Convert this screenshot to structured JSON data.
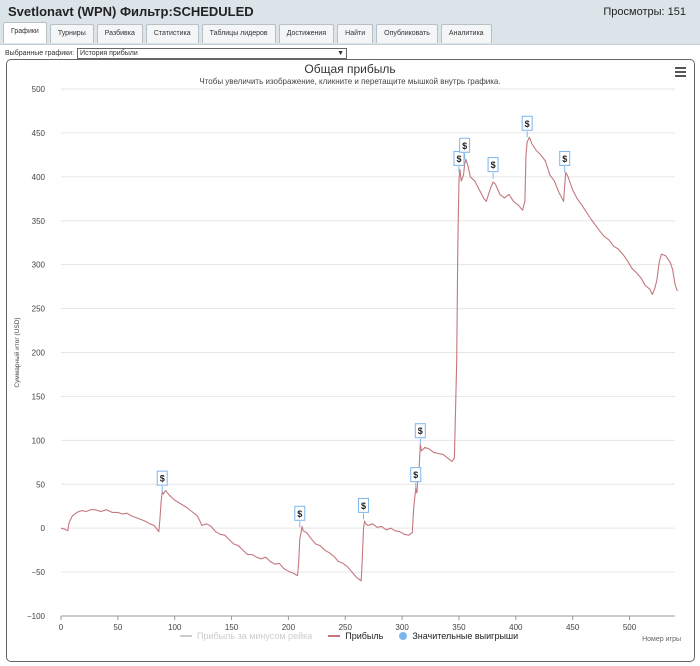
{
  "header": {
    "title": "Svetlonavt (WPN) Фильтр:SCHEDULED",
    "views_label": "Просмотры: 151"
  },
  "tabs": [
    {
      "label": "Графики",
      "active": true
    },
    {
      "label": "Турниры"
    },
    {
      "label": "Разбивка"
    },
    {
      "label": "Статистика"
    },
    {
      "label": "Таблицы лидеров"
    },
    {
      "label": "Достижения"
    },
    {
      "label": "Найти"
    },
    {
      "label": "Опубликовать"
    },
    {
      "label": "Аналитика"
    }
  ],
  "selector": {
    "label": "Выбранные графики:",
    "value": "История прибыли"
  },
  "colors": {
    "profit_line": "#c4777e",
    "rake_line": "#cccccc",
    "big_win_marker": "#7cb5ec",
    "header_bg": "#dbe4e9",
    "grid": "#e6e6e6"
  },
  "chart_data": {
    "type": "line",
    "title": "Общая прибыль",
    "subtitle": "Чтобы увеличить изображение, кликните и перетащите мышкой внутрь графика.",
    "xlabel": "Номер игры",
    "ylabel": "Суммарный итог (USD)",
    "xlim": [
      0,
      540
    ],
    "ylim": [
      -100,
      500
    ],
    "x_ticks": [
      "0",
      "50",
      "100",
      "150",
      "200",
      "250",
      "300",
      "350",
      "400",
      "450",
      "500"
    ],
    "y_ticks": [
      "500",
      "450",
      "400",
      "350",
      "300",
      "250",
      "200",
      "150",
      "100",
      "50",
      "0",
      "−50",
      "−100"
    ],
    "legend_position": "bottom",
    "legend": [
      {
        "label": "Прибыль за минусом рейка",
        "hidden": true
      },
      {
        "label": "Прибыль"
      },
      {
        "label": "Значительные выигрыши"
      }
    ],
    "series": [
      {
        "name": "Прибыль",
        "points": [
          [
            0,
            0
          ],
          [
            3,
            -1
          ],
          [
            6,
            -3
          ],
          [
            7,
            6
          ],
          [
            10,
            14
          ],
          [
            14,
            18
          ],
          [
            18,
            20
          ],
          [
            22,
            19
          ],
          [
            26,
            21
          ],
          [
            30,
            21
          ],
          [
            35,
            19
          ],
          [
            40,
            21
          ],
          [
            45,
            18
          ],
          [
            50,
            18
          ],
          [
            54,
            16
          ],
          [
            58,
            17
          ],
          [
            62,
            14
          ],
          [
            66,
            12
          ],
          [
            70,
            10
          ],
          [
            74,
            8
          ],
          [
            78,
            5
          ],
          [
            82,
            3
          ],
          [
            86,
            -4
          ],
          [
            87,
            10
          ],
          [
            88,
            30
          ],
          [
            89,
            41
          ],
          [
            90,
            39
          ],
          [
            92,
            43
          ],
          [
            95,
            38
          ],
          [
            100,
            32
          ],
          [
            105,
            28
          ],
          [
            110,
            24
          ],
          [
            115,
            19
          ],
          [
            120,
            14
          ],
          [
            124,
            3
          ],
          [
            128,
            5
          ],
          [
            132,
            2
          ],
          [
            136,
            -4
          ],
          [
            140,
            -7
          ],
          [
            144,
            -8
          ],
          [
            148,
            -13
          ],
          [
            152,
            -18
          ],
          [
            156,
            -20
          ],
          [
            160,
            -25
          ],
          [
            164,
            -30
          ],
          [
            168,
            -30
          ],
          [
            172,
            -33
          ],
          [
            176,
            -35
          ],
          [
            180,
            -33
          ],
          [
            184,
            -38
          ],
          [
            188,
            -41
          ],
          [
            192,
            -40
          ],
          [
            196,
            -46
          ],
          [
            200,
            -49
          ],
          [
            204,
            -51
          ],
          [
            208,
            -54
          ],
          [
            209,
            -41
          ],
          [
            210,
            -12
          ],
          [
            211,
            -6
          ],
          [
            212,
            2
          ],
          [
            213,
            -3
          ],
          [
            216,
            -5
          ],
          [
            220,
            -12
          ],
          [
            224,
            -18
          ],
          [
            228,
            -20
          ],
          [
            232,
            -25
          ],
          [
            236,
            -28
          ],
          [
            240,
            -32
          ],
          [
            244,
            -38
          ],
          [
            248,
            -40
          ],
          [
            252,
            -44
          ],
          [
            256,
            -50
          ],
          [
            260,
            -56
          ],
          [
            264,
            -60
          ],
          [
            265,
            -35
          ],
          [
            266,
            0
          ],
          [
            267,
            8
          ],
          [
            268,
            5
          ],
          [
            270,
            3
          ],
          [
            274,
            5
          ],
          [
            278,
            1
          ],
          [
            282,
            2
          ],
          [
            286,
            -2
          ],
          [
            290,
            0
          ],
          [
            294,
            -3
          ],
          [
            298,
            -4
          ],
          [
            302,
            -7
          ],
          [
            306,
            -8
          ],
          [
            309,
            -5
          ],
          [
            310,
            20
          ],
          [
            311,
            33
          ],
          [
            312,
            45
          ],
          [
            313,
            40
          ],
          [
            314,
            60
          ],
          [
            315,
            70
          ],
          [
            316,
            95
          ],
          [
            317,
            88
          ],
          [
            320,
            92
          ],
          [
            324,
            90
          ],
          [
            328,
            86
          ],
          [
            332,
            85
          ],
          [
            336,
            84
          ],
          [
            340,
            80
          ],
          [
            344,
            76
          ],
          [
            346,
            80
          ],
          [
            348,
            190
          ],
          [
            349,
            320
          ],
          [
            350,
            398
          ],
          [
            351,
            408
          ],
          [
            352,
            395
          ],
          [
            354,
            402
          ],
          [
            355,
            414
          ],
          [
            356,
            420
          ],
          [
            358,
            412
          ],
          [
            360,
            400
          ],
          [
            364,
            395
          ],
          [
            368,
            385
          ],
          [
            372,
            375
          ],
          [
            374,
            372
          ],
          [
            376,
            380
          ],
          [
            378,
            388
          ],
          [
            380,
            394
          ],
          [
            382,
            392
          ],
          [
            386,
            380
          ],
          [
            390,
            376
          ],
          [
            394,
            380
          ],
          [
            398,
            372
          ],
          [
            402,
            368
          ],
          [
            406,
            362
          ],
          [
            408,
            372
          ],
          [
            409,
            425
          ],
          [
            410,
            440
          ],
          [
            412,
            445
          ],
          [
            414,
            438
          ],
          [
            418,
            430
          ],
          [
            422,
            425
          ],
          [
            426,
            418
          ],
          [
            430,
            402
          ],
          [
            434,
            395
          ],
          [
            438,
            382
          ],
          [
            442,
            372
          ],
          [
            443,
            390
          ],
          [
            444,
            405
          ],
          [
            446,
            400
          ],
          [
            450,
            385
          ],
          [
            454,
            375
          ],
          [
            458,
            368
          ],
          [
            462,
            360
          ],
          [
            466,
            352
          ],
          [
            470,
            345
          ],
          [
            474,
            338
          ],
          [
            478,
            332
          ],
          [
            482,
            328
          ],
          [
            486,
            321
          ],
          [
            490,
            318
          ],
          [
            494,
            312
          ],
          [
            498,
            305
          ],
          [
            502,
            296
          ],
          [
            506,
            291
          ],
          [
            510,
            285
          ],
          [
            514,
            276
          ],
          [
            518,
            272
          ],
          [
            520,
            266
          ],
          [
            522,
            272
          ],
          [
            524,
            282
          ],
          [
            526,
            302
          ],
          [
            528,
            312
          ],
          [
            532,
            310
          ],
          [
            536,
            302
          ],
          [
            538,
            294
          ],
          [
            540,
            278
          ],
          [
            542,
            270
          ]
        ]
      }
    ],
    "markers": [
      {
        "label": "$",
        "x": 89,
        "y": 41
      },
      {
        "label": "$",
        "x": 210,
        "y": 1
      },
      {
        "label": "$",
        "x": 266,
        "y": 10
      },
      {
        "label": "$",
        "x": 312,
        "y": 45
      },
      {
        "label": "$",
        "x": 316,
        "y": 95
      },
      {
        "label": "$",
        "x": 350,
        "y": 405
      },
      {
        "label": "$",
        "x": 355,
        "y": 420
      },
      {
        "label": "$",
        "x": 380,
        "y": 398
      },
      {
        "label": "$",
        "x": 410,
        "y": 445
      },
      {
        "label": "$",
        "x": 443,
        "y": 405
      }
    ]
  }
}
